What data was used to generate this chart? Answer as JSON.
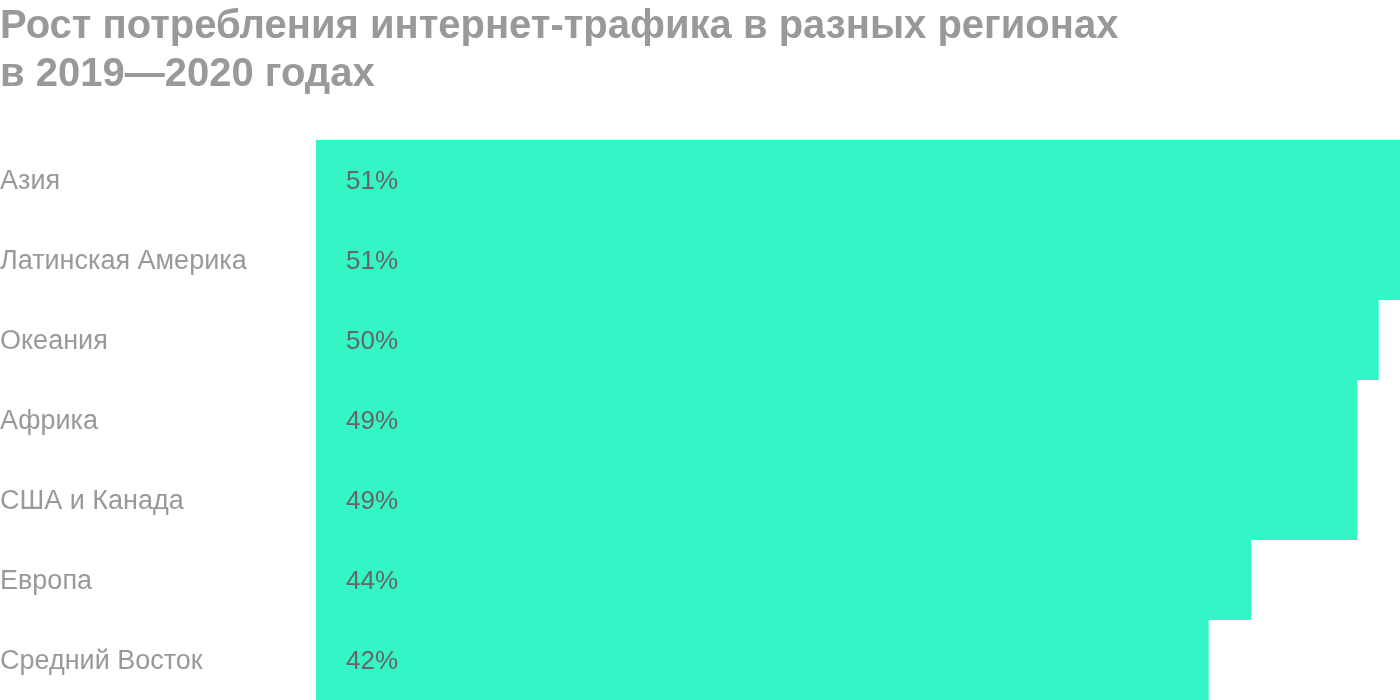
{
  "chart_data": {
    "type": "bar",
    "orientation": "horizontal",
    "title": "Рост потребления интернет-трафика в разных регионах в 2019—2020 годах",
    "categories": [
      "Азия",
      "Латинская Америка",
      "Океания",
      "Африка",
      "США и Канада",
      "Европа",
      "Средний Восток"
    ],
    "values": [
      51,
      51,
      50,
      49,
      49,
      44,
      42
    ],
    "color": "#33f5c5",
    "value_labels": [
      "51%",
      "51%",
      "50%",
      "49%",
      "49%",
      "44%",
      "42%"
    ]
  }
}
